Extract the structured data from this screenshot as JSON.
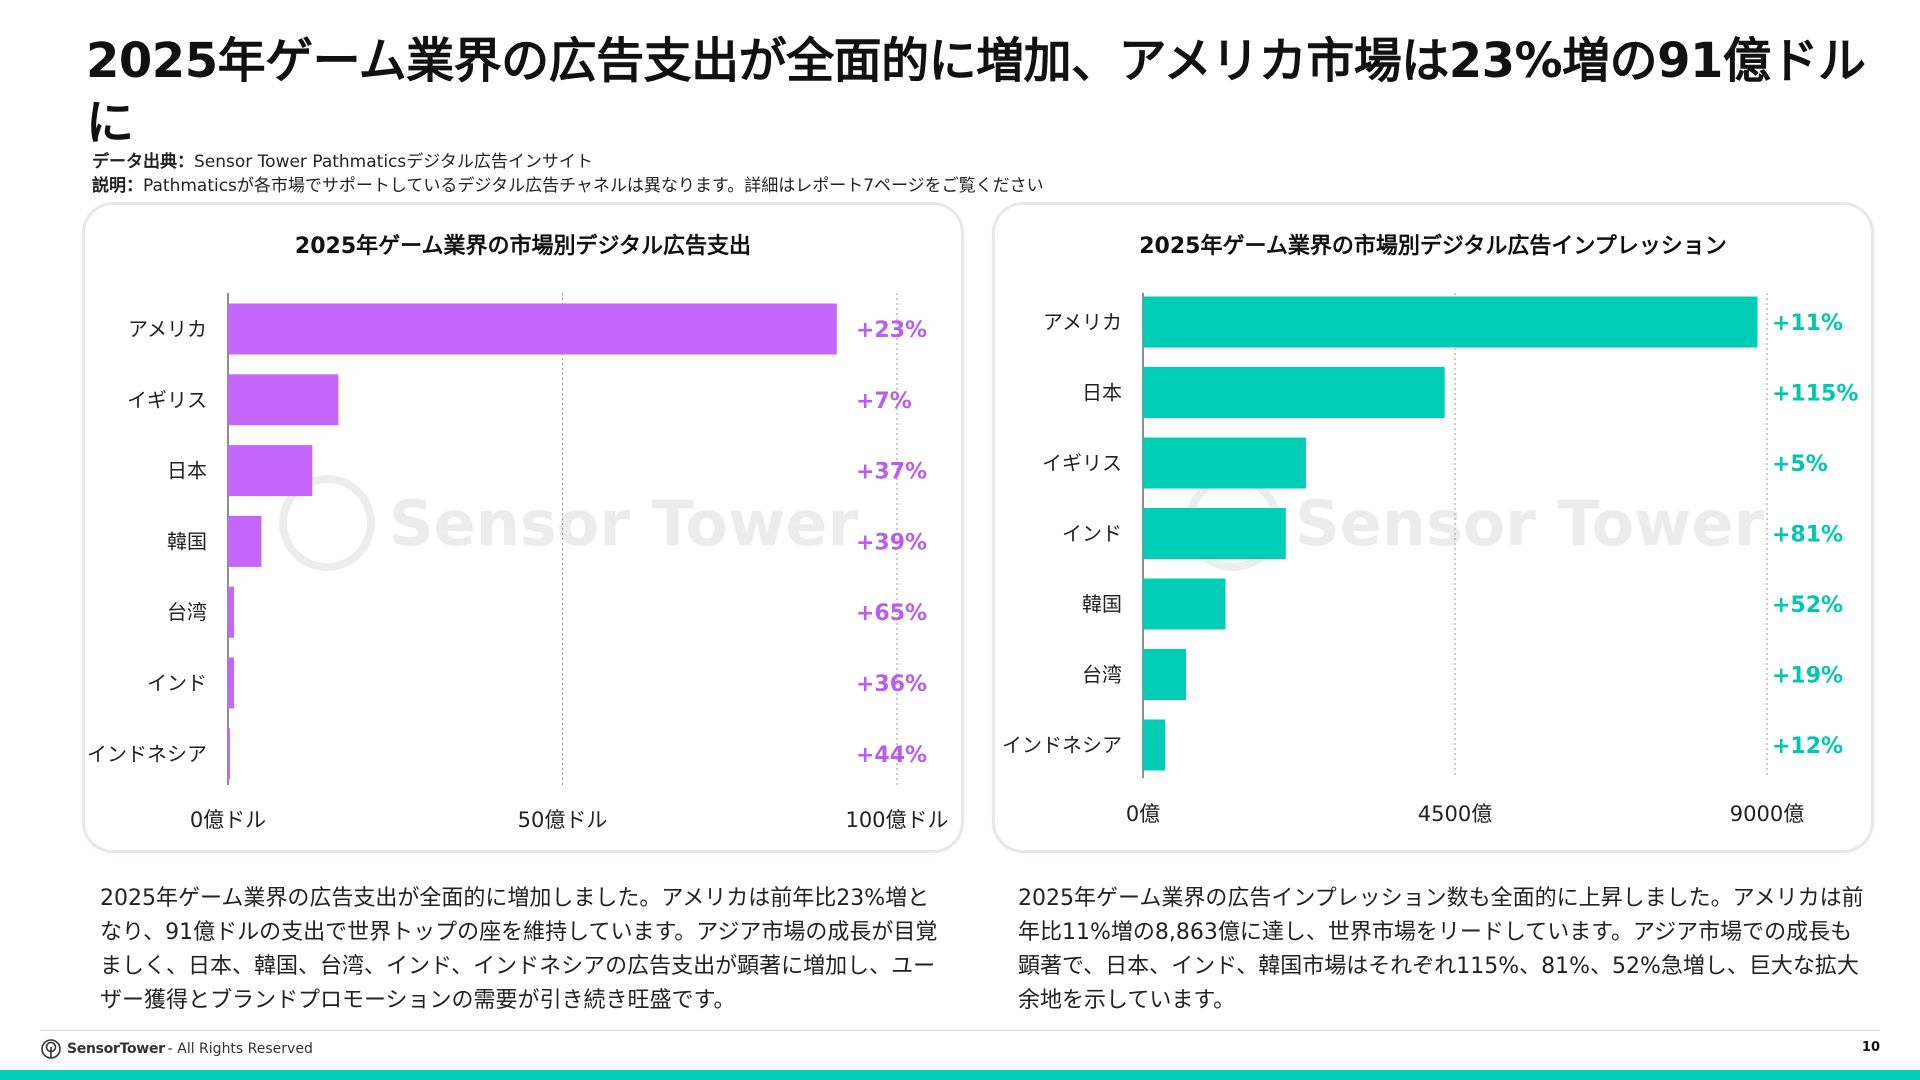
{
  "title": "2025年ゲーム業界の広告支出が全面的に増加、アメリカ市場は23%増の91億ドルに",
  "source": {
    "label1": "データ出典：",
    "text1": "Sensor Tower Pathmaticsデジタル広告インサイト",
    "label2": "説明：",
    "text2": "Pathmaticsが各市場でサポートしているデジタル広告チャネルは異なります。詳細はレポート7ページをご覧ください"
  },
  "watermark": "Sensor Tower",
  "colors": {
    "purple": "#c567fa",
    "purple_text": "#b75df0",
    "teal": "#00cdb6",
    "teal_text": "#00c7b0"
  },
  "chart_data": [
    {
      "type": "bar",
      "orientation": "horizontal",
      "title": "2025年ゲーム業界の市場別デジタル広告支出",
      "categories": [
        "アメリカ",
        "イギリス",
        "日本",
        "韓国",
        "台湾",
        "インド",
        "インドネシア"
      ],
      "values": [
        91,
        16.5,
        12.6,
        5.0,
        0.9,
        0.9,
        0.3
      ],
      "growth_labels": [
        "+23%",
        "+7%",
        "+37%",
        "+39%",
        "+65%",
        "+36%",
        "+44%"
      ],
      "xlim": [
        0,
        100
      ],
      "ticks": [
        0,
        50,
        100
      ],
      "tick_labels": [
        "0億ドル",
        "50億ドル",
        "100億ドル"
      ],
      "unit": "億ドル",
      "grid": true
    },
    {
      "type": "bar",
      "orientation": "horizontal",
      "title": "2025年ゲーム業界の市場別デジタル広告インプレッション",
      "categories": [
        "アメリカ",
        "日本",
        "イギリス",
        "インド",
        "韓国",
        "台湾",
        "インドネシア"
      ],
      "values": [
        8863,
        4350,
        2350,
        2060,
        1190,
        620,
        320
      ],
      "growth_labels": [
        "+11%",
        "+115%",
        "+5%",
        "+81%",
        "+52%",
        "+19%",
        "+12%"
      ],
      "xlim": [
        0,
        9000
      ],
      "ticks": [
        0,
        4500,
        9000
      ],
      "tick_labels": [
        "0億",
        "4500億",
        "9000億"
      ],
      "unit": "億",
      "grid": true
    }
  ],
  "desc_left": "2025年ゲーム業界の広告支出が全面的に増加しました。アメリカは前年比23%増となり、91億ドルの支出で世界トップの座を維持しています。アジア市場の成長が目覚ましく、日本、韓国、台湾、インド、インドネシアの広告支出が顕著に増加し、ユーザー獲得とブランドプロモーションの需要が引き続き旺盛です。",
  "desc_right": "2025年ゲーム業界の広告インプレッション数も全面的に上昇しました。アメリカは前年比11%増の8,863億に達し、世界市場をリードしています。アジア市場での成長も顕著で、日本、インド、韓国市場はそれぞれ115%、81%、52%急増し、巨大な拡大余地を示しています。",
  "footer": {
    "brand": "SensorTower",
    "rights": "- All Rights Reserved",
    "page": "10"
  }
}
